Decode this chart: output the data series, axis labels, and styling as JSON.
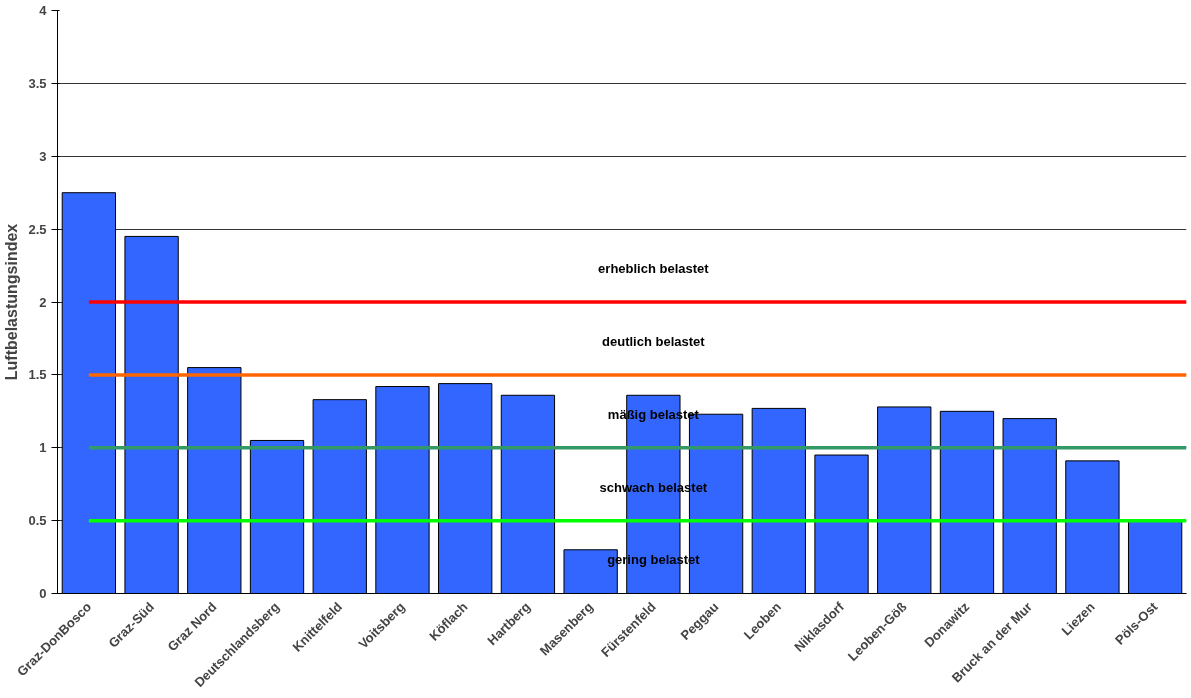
{
  "chart_data": {
    "type": "bar",
    "ylabel": "Luftbelastungsindex",
    "categories": [
      "Graz-DonBosco",
      "Graz-Süd",
      "Graz Nord",
      "Deutschlandsberg",
      "Knittelfeld",
      "Voitsberg",
      "Köflach",
      "Hartberg",
      "Masenberg",
      "Fürstenfeld",
      "Peggau",
      "Leoben",
      "Niklasdorf",
      "Leoben-Göß",
      "Donawitz",
      "Bruck an der Mur",
      "Liezen",
      "Pöls-Ost"
    ],
    "values": [
      2.75,
      2.45,
      1.55,
      1.05,
      1.33,
      1.42,
      1.44,
      1.36,
      0.3,
      1.36,
      1.23,
      1.27,
      0.95,
      1.28,
      1.25,
      1.2,
      0.91,
      0.5
    ],
    "color": "#3366ff",
    "ylim": [
      0,
      4
    ],
    "yticks": [
      0,
      0.5,
      1,
      1.5,
      2,
      2.5,
      3,
      3.5,
      4
    ],
    "grid": "y",
    "ref_lines": [
      {
        "axis": "y",
        "value": 2,
        "color": "#ff0000"
      },
      {
        "axis": "y",
        "value": 1.5,
        "color": "#ff6600"
      },
      {
        "axis": "y",
        "value": 1,
        "color": "#339966"
      },
      {
        "axis": "y",
        "value": 0.5,
        "color": "#00ff00"
      }
    ],
    "annotations": [
      "erheblich belastet",
      "deutlich belastet",
      "mäßig belastet",
      "schwach belastet",
      "gering belastet"
    ]
  }
}
